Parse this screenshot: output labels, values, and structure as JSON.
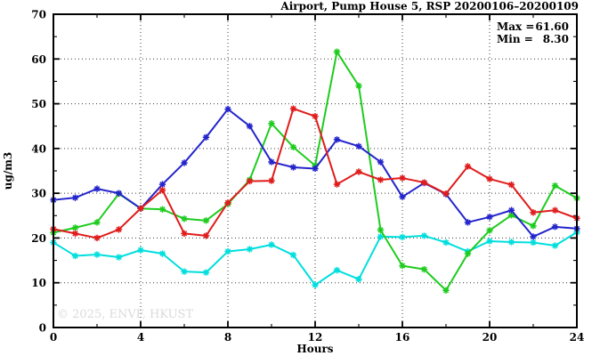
{
  "annotations": {
    "max_prefix": "Max =",
    "max_value": "61.60",
    "min_prefix": "Min =",
    "min_value": "8.30"
  },
  "watermark_text": "© 2025, ENVF, HKUST",
  "chart_data": {
    "type": "line",
    "title": "Airport, Pump House 5, RSP 20200106–20200109",
    "xlabel": "Hours",
    "ylabel": "ug/m3",
    "xlim": [
      0,
      24
    ],
    "ylim": [
      0,
      70
    ],
    "x_major_ticks": [
      0,
      4,
      8,
      12,
      16,
      20,
      24
    ],
    "x_minor_step": 2,
    "y_major_ticks": [
      0,
      10,
      20,
      30,
      40,
      50,
      60,
      70
    ],
    "y_minor_step": 5,
    "grid": "dotted-at-major-ticks",
    "legend_position": "none",
    "stats": {
      "max": 61.6,
      "min": 8.3
    },
    "x": [
      0,
      1,
      2,
      3,
      4,
      5,
      6,
      7,
      8,
      9,
      10,
      11,
      12,
      13,
      14,
      15,
      16,
      17,
      18,
      19,
      20,
      21,
      22,
      23,
      24
    ],
    "series": [
      {
        "name": "cyan-series",
        "color": "#00dede",
        "values": [
          19.0,
          16.0,
          16.3,
          15.7,
          17.3,
          16.5,
          12.5,
          12.3,
          17.0,
          17.5,
          18.5,
          16.2,
          9.5,
          12.8,
          10.8,
          20.3,
          20.2,
          20.5,
          19.0,
          17.0,
          19.3,
          19.1,
          19.0,
          18.3,
          21.3
        ]
      },
      {
        "name": "green-series",
        "color": "#1ecc1e",
        "values": [
          21.2,
          22.3,
          23.5,
          29.9,
          26.6,
          26.4,
          24.3,
          23.9,
          27.6,
          33.0,
          45.6,
          40.3,
          36.2,
          61.6,
          54.0,
          21.8,
          13.8,
          13.0,
          8.3,
          16.5,
          21.7,
          25.1,
          22.7,
          31.7,
          28.9
        ]
      },
      {
        "name": "blue-series",
        "color": "#2424cc",
        "values": [
          28.5,
          29.0,
          31.0,
          30.0,
          26.6,
          32.0,
          36.8,
          42.5,
          48.8,
          45.0,
          37.0,
          35.8,
          35.5,
          42.0,
          40.5,
          37.0,
          29.2,
          32.3,
          29.8,
          23.5,
          24.7,
          26.2,
          20.3,
          22.5,
          22.1
        ]
      },
      {
        "name": "red-series",
        "color": "#e01c1c",
        "values": [
          22.0,
          21.0,
          20.0,
          21.9,
          26.6,
          30.7,
          21.0,
          20.5,
          27.9,
          32.7,
          32.8,
          48.9,
          47.2,
          32.0,
          34.8,
          33.0,
          33.4,
          32.4,
          29.9,
          36.0,
          33.2,
          31.9,
          25.7,
          26.2,
          24.4
        ]
      }
    ]
  }
}
